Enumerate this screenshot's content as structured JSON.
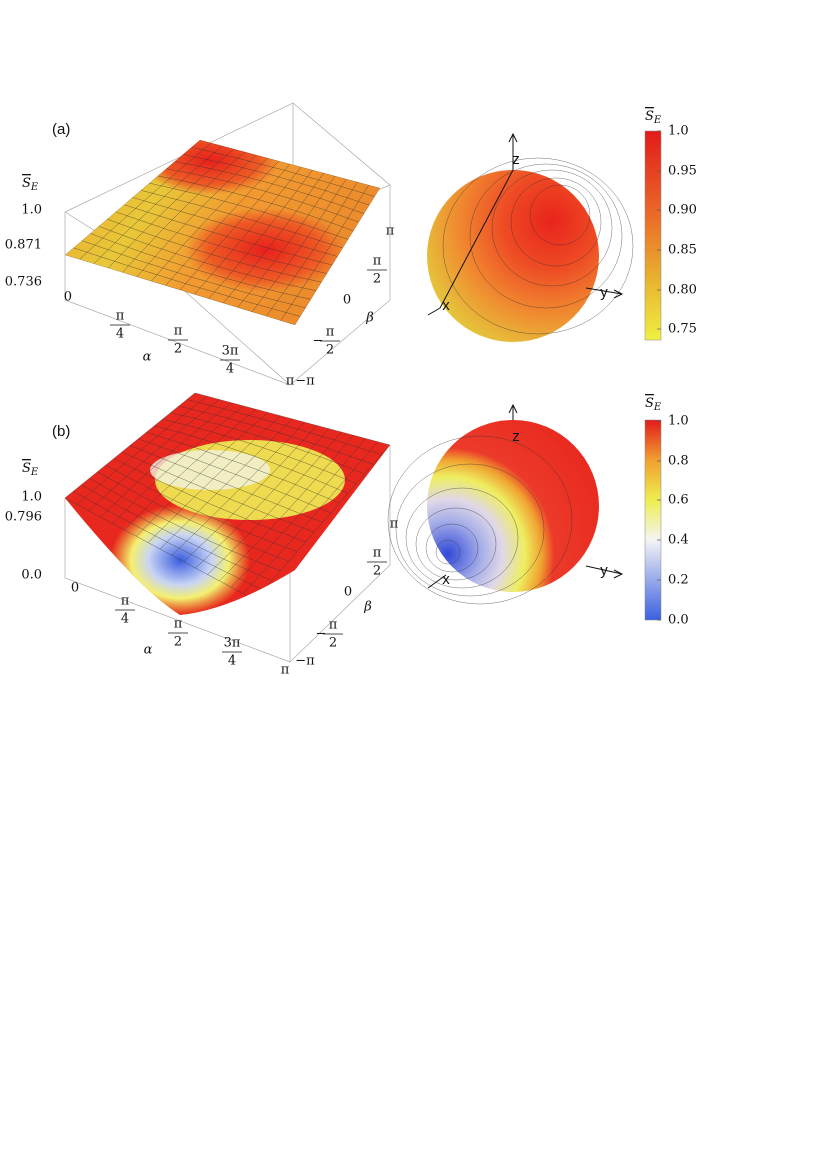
{
  "panels": [
    {
      "tag": "(a)",
      "surface": {
        "zlabel": {
          "base": "S",
          "sub": "E"
        },
        "zticks": [
          "1.0",
          "0.871",
          "0.736",
          "0"
        ],
        "alpha_label": "α",
        "alpha_ticks": [
          {
            "num": "π",
            "den": "4"
          },
          {
            "num": "π",
            "den": "2"
          },
          {
            "num": "3π",
            "den": "4"
          },
          "π"
        ],
        "beta_label": "β",
        "beta_ticks": [
          "π",
          {
            "num": "π",
            "den": "2"
          },
          "0",
          {
            "sign": "−",
            "num": "π",
            "den": "2"
          },
          "−π"
        ]
      },
      "sphere": {
        "axes": [
          "z",
          "x",
          "y"
        ]
      },
      "colorbar": {
        "title": {
          "base": "S",
          "sub": "E"
        },
        "ticks": [
          "1.0",
          "0.95",
          "0.90",
          "0.85",
          "0.80",
          "0.75"
        ]
      }
    },
    {
      "tag": "(b)",
      "surface": {
        "zlabel": {
          "base": "S",
          "sub": "E"
        },
        "zticks": [
          "1.0",
          "0.796",
          "0.0"
        ],
        "alpha_label": "α",
        "alpha_ticks": [
          "0",
          {
            "num": "π",
            "den": "4"
          },
          {
            "num": "π",
            "den": "2"
          },
          {
            "num": "3π",
            "den": "4"
          },
          "π"
        ],
        "beta_label": "β",
        "beta_ticks": [
          "π",
          {
            "num": "π",
            "den": "2"
          },
          "0",
          {
            "sign": "−",
            "num": "π",
            "den": "2"
          },
          "−π"
        ]
      },
      "sphere": {
        "axes": [
          "z",
          "x",
          "y"
        ]
      },
      "colorbar": {
        "title": {
          "base": "S",
          "sub": "E"
        },
        "ticks": [
          "1.0",
          "0.8",
          "0.6",
          "0.4",
          "0.2",
          "0.0"
        ]
      }
    }
  ]
}
